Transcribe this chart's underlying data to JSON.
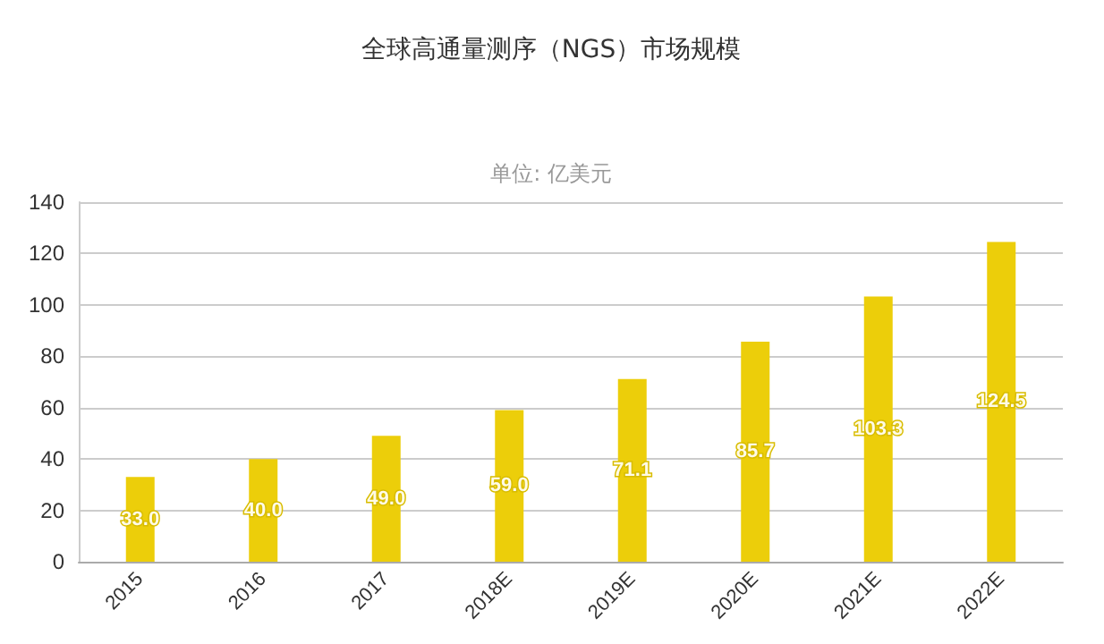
{
  "chart_data": {
    "type": "bar",
    "title": "全球高通量测序（NGS）市场规模",
    "subtitle": "单位: 亿美元",
    "categories": [
      "2015",
      "2016",
      "2017",
      "2018E",
      "2019E",
      "2020E",
      "2021E",
      "2022E"
    ],
    "values": [
      33,
      40,
      49,
      59,
      71.1,
      85.7,
      103.3,
      124.5
    ],
    "value_labels": [
      "33.0",
      "40.0",
      "49.0",
      "59.0",
      "71.1",
      "85.7",
      "103.3",
      "124.5"
    ],
    "color": "#ecce0a",
    "ylim": [
      0,
      140
    ],
    "yticks": [
      0,
      20,
      40,
      60,
      80,
      100,
      120,
      140
    ],
    "grid": "y"
  }
}
